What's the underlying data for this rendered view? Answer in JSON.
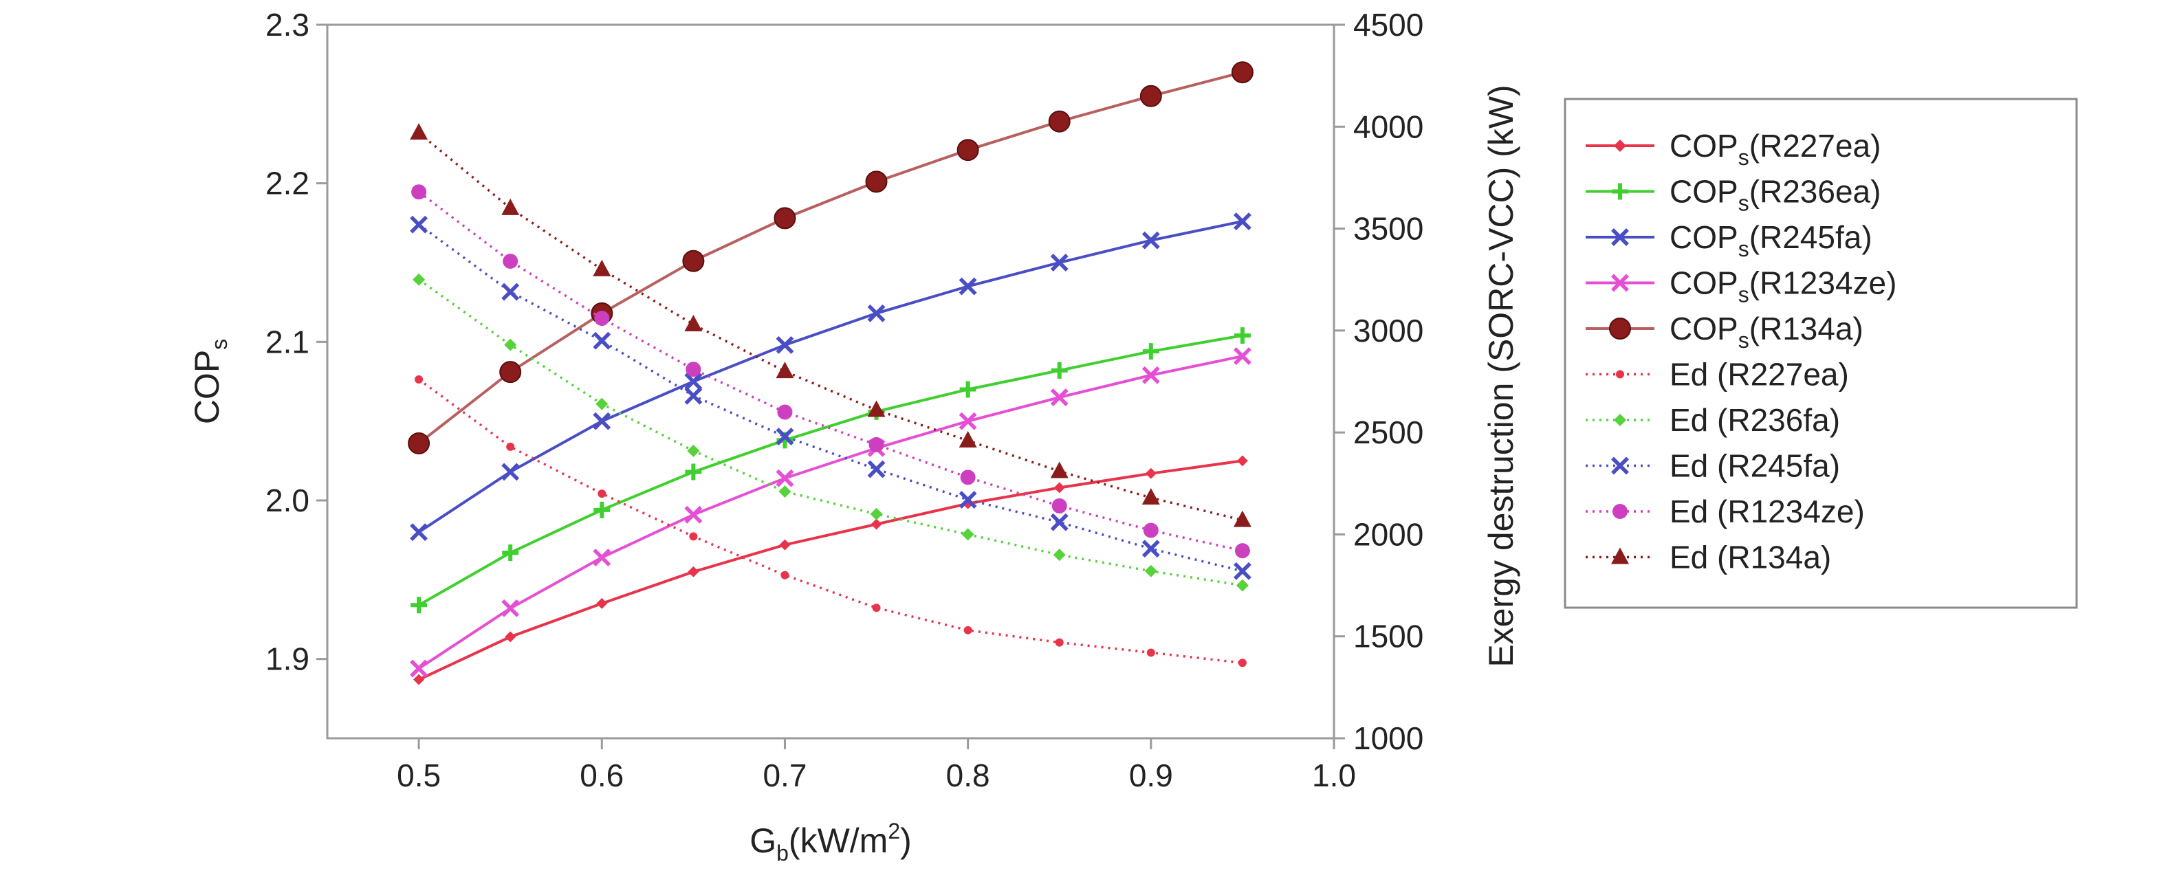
{
  "chart_data": {
    "type": "line",
    "x": [
      0.5,
      0.55,
      0.6,
      0.65,
      0.7,
      0.75,
      0.8,
      0.85,
      0.9,
      0.95
    ],
    "x_tick_labels": [
      "0.5",
      "0.6",
      "0.7",
      "0.8",
      "0.9",
      "1.0"
    ],
    "xlim": [
      0.45,
      1.0
    ],
    "xlabel": {
      "base": "G",
      "sub": "b",
      "unit_pre": "(kW/m",
      "sup": "2",
      "unit_post": ")"
    },
    "ylabel_left": {
      "base": "COP",
      "sub": "s"
    },
    "ylim_left": [
      1.85,
      2.3
    ],
    "y_left_tick_labels": [
      "1.9",
      "2.0",
      "2.1",
      "2.2",
      "2.3"
    ],
    "ylabel_right": "Exergy destruction (SORC-VCC) (kW)",
    "ylim_right": [
      1000,
      4500
    ],
    "y_right_tick_labels": [
      "1000",
      "1500",
      "2000",
      "2500",
      "3000",
      "3500",
      "4000",
      "4500"
    ],
    "legend_position": "right",
    "series": [
      {
        "name": "COPs(R227ea)",
        "label_base": "COP",
        "label_sub": "s",
        "label_rest": "(R227ea)",
        "axis": "left",
        "style": "solid",
        "marker": "diamond",
        "color": "#e8344a",
        "values": [
          1.887,
          1.914,
          1.935,
          1.955,
          1.972,
          1.985,
          1.998,
          2.008,
          2.017,
          2.025
        ]
      },
      {
        "name": "COPs(R236ea)",
        "label_base": "COP",
        "label_sub": "s",
        "label_rest": "(R236ea)",
        "axis": "left",
        "style": "solid",
        "marker": "plus",
        "color": "#3fcf2f",
        "values": [
          1.934,
          1.967,
          1.994,
          2.018,
          2.038,
          2.056,
          2.07,
          2.082,
          2.094,
          2.104
        ]
      },
      {
        "name": "COPs(R245fa)",
        "label_base": "COP",
        "label_sub": "s",
        "label_rest": "(R245fa)",
        "axis": "left",
        "style": "solid",
        "marker": "x",
        "color": "#4a4ec4",
        "values": [
          1.98,
          2.018,
          2.05,
          2.075,
          2.098,
          2.118,
          2.135,
          2.15,
          2.164,
          2.176
        ]
      },
      {
        "name": "COPs(R1234ze)",
        "label_base": "COP",
        "label_sub": "s",
        "label_rest": "(R1234ze)",
        "axis": "left",
        "style": "solid",
        "marker": "x",
        "color": "#e54fd4",
        "values": [
          1.894,
          1.932,
          1.964,
          1.991,
          2.014,
          2.033,
          2.05,
          2.065,
          2.079,
          2.091
        ]
      },
      {
        "name": "COPs(R134a)",
        "label_base": "COP",
        "label_sub": "s",
        "label_rest": "(R134a)",
        "axis": "left",
        "style": "solid",
        "marker": "circle-large",
        "color": "#8a1c1c",
        "line_color": "#b86060",
        "values": [
          2.036,
          2.081,
          2.118,
          2.151,
          2.178,
          2.201,
          2.221,
          2.239,
          2.255,
          2.27
        ]
      },
      {
        "name": "Ed (R227ea)",
        "label_base": "Ed (R227ea)",
        "label_sub": "",
        "label_rest": "",
        "axis": "right",
        "style": "dotted",
        "marker": "dot",
        "color": "#e8344a",
        "values": [
          2760,
          2430,
          2200,
          1990,
          1800,
          1640,
          1530,
          1470,
          1420,
          1370
        ]
      },
      {
        "name": "Ed (R236fa)",
        "label_base": "Ed (R236fa)",
        "label_sub": "",
        "label_rest": "",
        "axis": "right",
        "style": "dotted",
        "marker": "diamond",
        "color": "#56d23a",
        "values": [
          3250,
          2930,
          2640,
          2410,
          2210,
          2100,
          2000,
          1900,
          1820,
          1750
        ]
      },
      {
        "name": "Ed (R245fa)",
        "label_base": "Ed (R245fa)",
        "label_sub": "",
        "label_rest": "",
        "axis": "right",
        "style": "dotted",
        "marker": "x",
        "color": "#4a4ec4",
        "values": [
          3520,
          3190,
          2950,
          2680,
          2480,
          2320,
          2170,
          2060,
          1930,
          1820
        ]
      },
      {
        "name": "Ed (R1234ze)",
        "label_base": "Ed (R1234ze)",
        "label_sub": "",
        "label_rest": "",
        "axis": "right",
        "style": "dotted",
        "marker": "circle",
        "color": "#cc3fbf",
        "values": [
          3680,
          3340,
          3060,
          2810,
          2600,
          2440,
          2280,
          2140,
          2020,
          1920
        ]
      },
      {
        "name": "Ed (R134a)",
        "label_base": "Ed (R134a)",
        "label_sub": "",
        "label_rest": "",
        "axis": "right",
        "style": "dotted",
        "marker": "triangle",
        "color": "#8a1c1c",
        "values": [
          3970,
          3600,
          3300,
          3030,
          2800,
          2610,
          2460,
          2310,
          2180,
          2070
        ]
      }
    ]
  }
}
